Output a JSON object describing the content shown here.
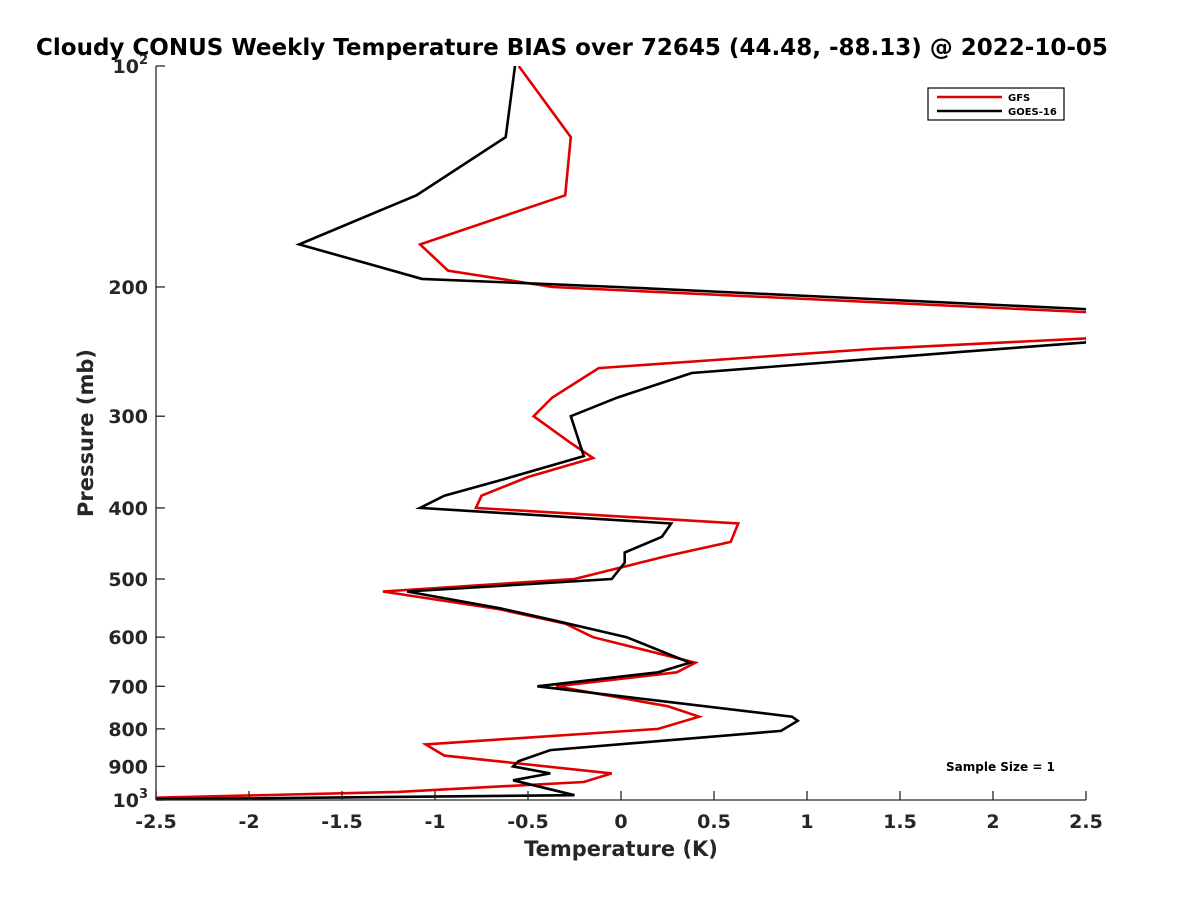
{
  "chart_data": {
    "type": "line",
    "title": "Cloudy CONUS Weekly Temperature BIAS over 72645 (44.48, -88.13) @ 2022-10-05",
    "xlabel": "Temperature (K)",
    "ylabel": "Pressure (mb)",
    "xlim": [
      -2.5,
      2.5
    ],
    "ylim": [
      100,
      1000
    ],
    "y_scale": "log",
    "y_reversed": true,
    "grid": false,
    "legend_position": "top-right",
    "annotation": "Sample Size = 1",
    "x_ticks": [
      "-2.5",
      "-2",
      "-1.5",
      "-1",
      "-0.5",
      "0",
      "0.5",
      "1",
      "1.5",
      "2",
      "2.5"
    ],
    "x_tick_values": [
      -2.5,
      -2,
      -1.5,
      -1,
      -0.5,
      0,
      0.5,
      1,
      1.5,
      2,
      2.5
    ],
    "y_ticks": [
      {
        "value": 100,
        "base": "10",
        "exp": "2"
      },
      {
        "value": 200,
        "base": "200",
        "exp": ""
      },
      {
        "value": 300,
        "base": "300",
        "exp": ""
      },
      {
        "value": 400,
        "base": "400",
        "exp": ""
      },
      {
        "value": 500,
        "base": "500",
        "exp": ""
      },
      {
        "value": 600,
        "base": "600",
        "exp": ""
      },
      {
        "value": 700,
        "base": "700",
        "exp": ""
      },
      {
        "value": 800,
        "base": "800",
        "exp": ""
      },
      {
        "value": 900,
        "base": "900",
        "exp": ""
      },
      {
        "value": 1000,
        "base": "10",
        "exp": "3"
      }
    ],
    "series": [
      {
        "name": "GFS",
        "color": "#e00000",
        "points": [
          [
            -0.55,
            100
          ],
          [
            -0.27,
            125
          ],
          [
            -0.3,
            150
          ],
          [
            -1.08,
            175
          ],
          [
            -0.93,
            190
          ],
          [
            -0.37,
            200
          ],
          [
            2.6,
            217
          ],
          [
            2.5,
            235
          ],
          [
            1.35,
            243
          ],
          [
            -0.12,
            258
          ],
          [
            -0.37,
            283
          ],
          [
            -0.47,
            300
          ],
          [
            -0.28,
            325
          ],
          [
            -0.15,
            342
          ],
          [
            -0.5,
            363
          ],
          [
            -0.75,
            385
          ],
          [
            -0.78,
            400
          ],
          [
            0.63,
            420
          ],
          [
            0.59,
            445
          ],
          [
            0.25,
            465
          ],
          [
            -0.25,
            500
          ],
          [
            -1.28,
            520
          ],
          [
            -0.65,
            550
          ],
          [
            -0.3,
            575
          ],
          [
            -0.15,
            600
          ],
          [
            0.4,
            650
          ],
          [
            0.3,
            670
          ],
          [
            -0.35,
            700
          ],
          [
            0.25,
            745
          ],
          [
            0.42,
            770
          ],
          [
            0.2,
            800
          ],
          [
            -1.05,
            840
          ],
          [
            -0.95,
            870
          ],
          [
            -0.05,
            920
          ],
          [
            -0.2,
            945
          ],
          [
            -1.2,
            975
          ],
          [
            -2.65,
            995
          ]
        ]
      },
      {
        "name": "GOES-16",
        "color": "#000000",
        "points": [
          [
            -0.57,
            100
          ],
          [
            -0.62,
            125
          ],
          [
            -1.1,
            150
          ],
          [
            -1.73,
            175
          ],
          [
            -1.07,
            195
          ],
          [
            -0.02,
            200
          ],
          [
            2.6,
            215
          ],
          [
            2.5,
            238
          ],
          [
            1.85,
            245
          ],
          [
            0.38,
            262
          ],
          [
            -0.02,
            283
          ],
          [
            -0.27,
            300
          ],
          [
            -0.2,
            340
          ],
          [
            -0.62,
            365
          ],
          [
            -0.95,
            385
          ],
          [
            -1.08,
            400
          ],
          [
            0.27,
            420
          ],
          [
            0.22,
            438
          ],
          [
            0.02,
            460
          ],
          [
            0.02,
            475
          ],
          [
            -0.05,
            500
          ],
          [
            -1.15,
            520
          ],
          [
            -0.65,
            548
          ],
          [
            -0.35,
            570
          ],
          [
            0.03,
            600
          ],
          [
            0.37,
            650
          ],
          [
            0.2,
            670
          ],
          [
            -0.45,
            700
          ],
          [
            0.92,
            770
          ],
          [
            0.95,
            780
          ],
          [
            0.86,
            805
          ],
          [
            -0.38,
            855
          ],
          [
            -0.55,
            885
          ],
          [
            -0.58,
            900
          ],
          [
            -0.38,
            920
          ],
          [
            -0.58,
            940
          ],
          [
            -0.25,
            985
          ],
          [
            -2.6,
            998
          ]
        ]
      }
    ]
  }
}
